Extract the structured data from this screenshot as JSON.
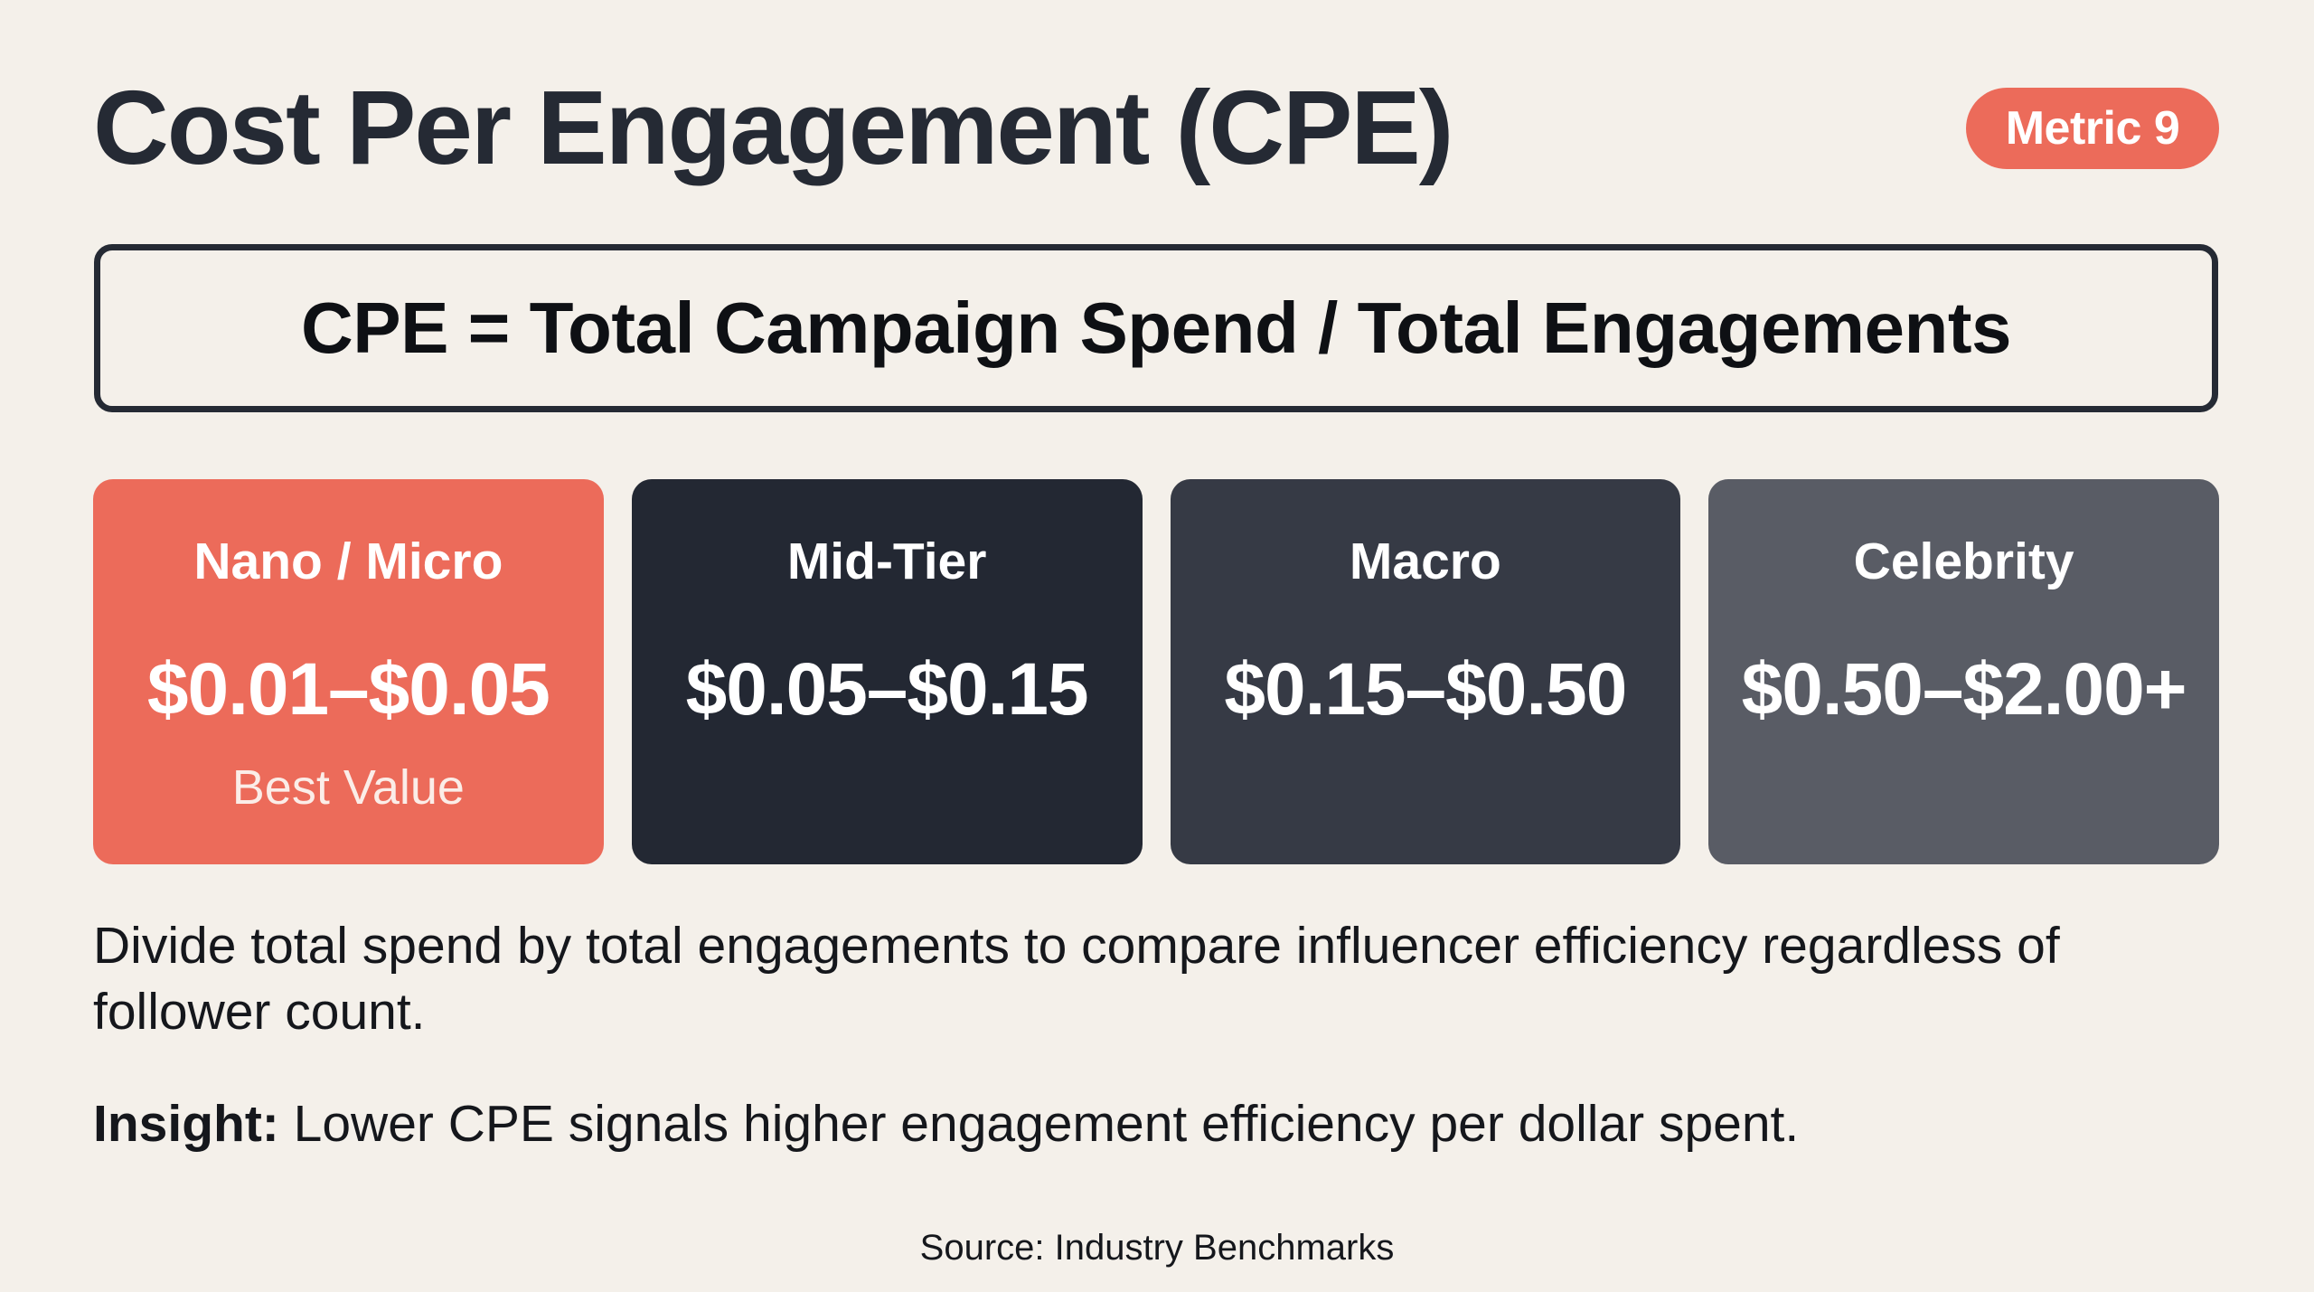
{
  "header": {
    "title": "Cost Per Engagement (CPE)",
    "badge": "Metric 9"
  },
  "formula": {
    "text": "CPE = Total Campaign Spend / Total Engagements"
  },
  "tiers": [
    {
      "label": "Nano / Micro",
      "value": "$0.01–$0.05",
      "note": "Best Value",
      "color": "#EC6B5A"
    },
    {
      "label": "Mid-Tier",
      "value": "$0.05–$0.15",
      "note": "",
      "color": "#232833"
    },
    {
      "label": "Macro",
      "value": "$0.15–$0.50",
      "note": "",
      "color": "#363A45"
    },
    {
      "label": "Celebrity",
      "value": "$0.50–$2.00+",
      "note": "",
      "color": "#595C65"
    }
  ],
  "body": {
    "description": "Divide total spend by total engagements to compare influencer efficiency regardless of follower count.",
    "insight_label": "Insight:",
    "insight_text": " Lower CPE signals higher engagement efficiency per dollar spent."
  },
  "footer": {
    "source": "Source: Industry Benchmarks"
  },
  "colors": {
    "background": "#F4F0EA",
    "accent": "#EC6B5A",
    "text_dark": "#252A34"
  }
}
